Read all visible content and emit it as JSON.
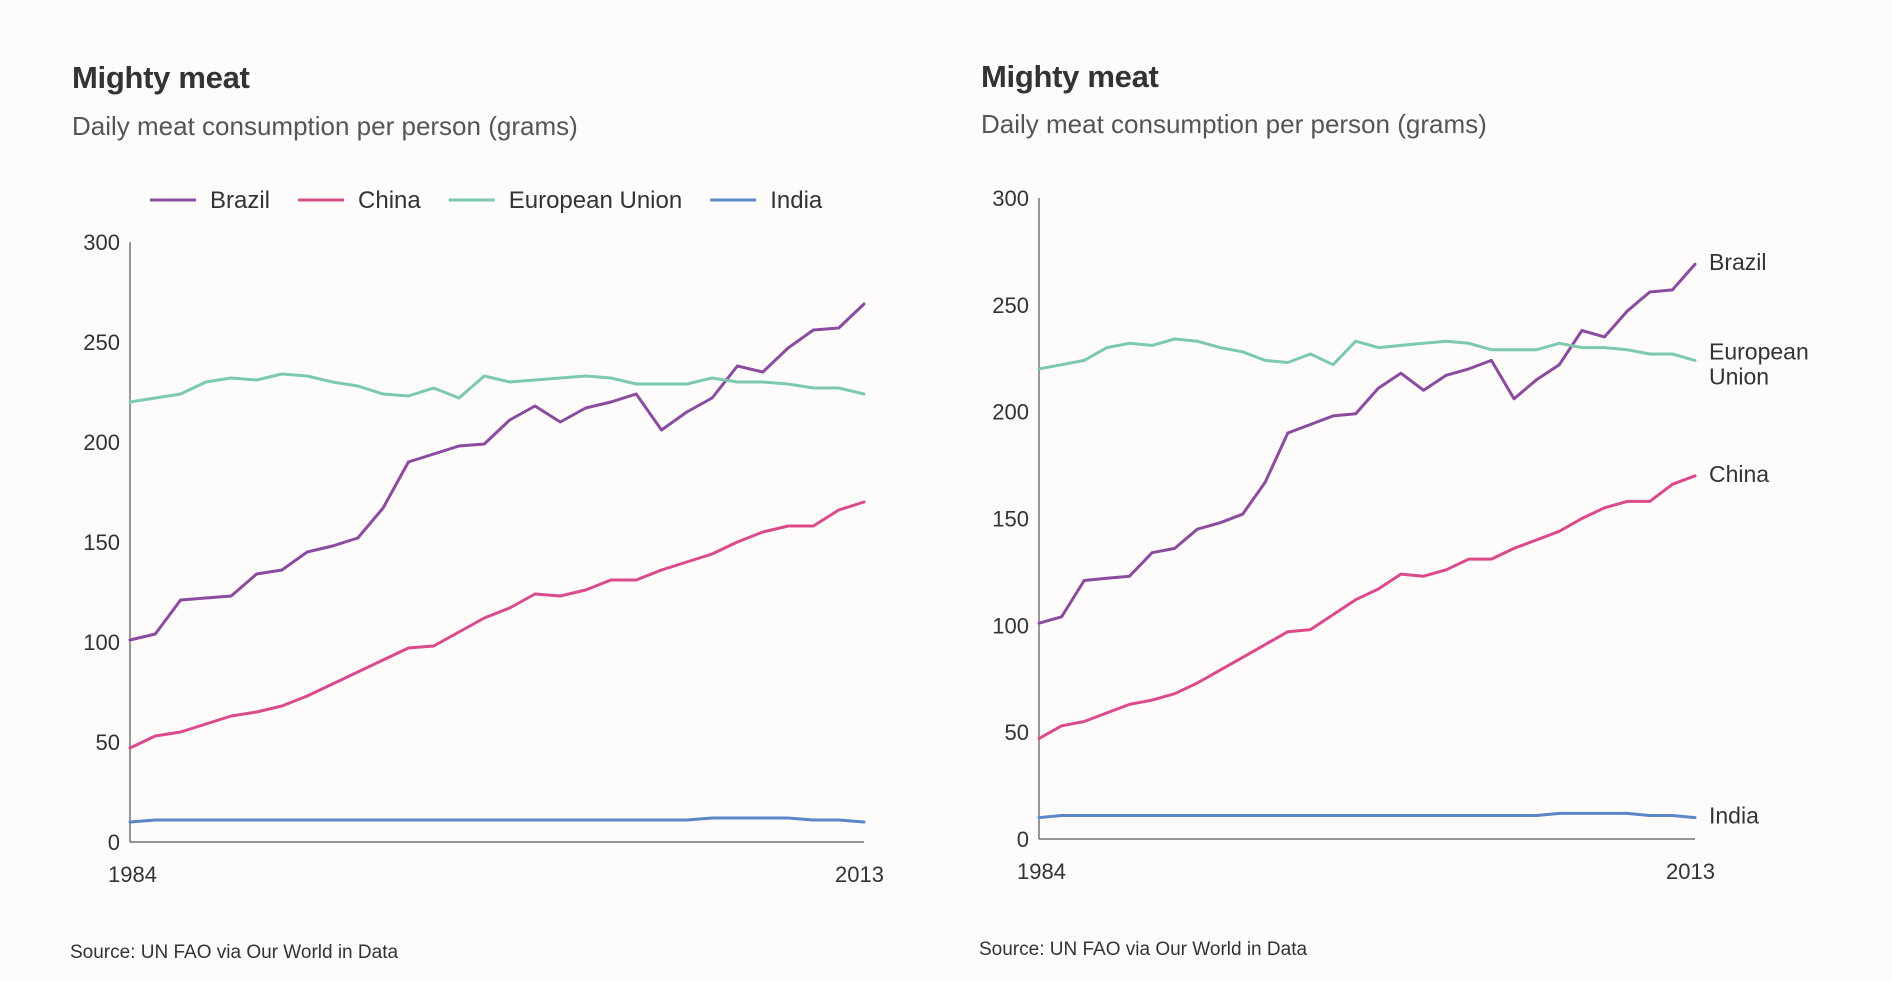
{
  "colors": {
    "Brazil": "#8b4b9e",
    "China": "#db4a8c",
    "European Union": "#7cc9b0",
    "India": "#5b87c9",
    "axis": "#555555"
  },
  "left": {
    "title": "Mighty meat",
    "subtitle": "Daily meat consumption per person (grams)",
    "source": "Source: UN FAO via Our World in Data",
    "legend": [
      "Brazil",
      "China",
      "European Union",
      "India"
    ]
  },
  "right": {
    "title": "Mighty meat",
    "subtitle": "Daily meat consumption per person (grams)",
    "source": "Source: UN FAO via Our World in Data",
    "end_labels": [
      {
        "name": "Brazil",
        "lines": [
          "Brazil"
        ]
      },
      {
        "name": "European Union",
        "lines": [
          "European",
          "Union"
        ]
      },
      {
        "name": "China",
        "lines": [
          "China"
        ]
      },
      {
        "name": "India",
        "lines": [
          "India"
        ]
      }
    ]
  },
  "chart_data": [
    {
      "type": "line",
      "title": "Mighty meat",
      "subtitle": "Daily meat consumption per person (grams)",
      "xlabel": "",
      "ylabel": "",
      "x": [
        1984,
        1985,
        1986,
        1987,
        1988,
        1989,
        1990,
        1991,
        1992,
        1993,
        1994,
        1995,
        1996,
        1997,
        1998,
        1999,
        2000,
        2001,
        2002,
        2003,
        2004,
        2005,
        2006,
        2007,
        2008,
        2009,
        2010,
        2011,
        2012,
        2013
      ],
      "x_tick_labels": [
        "1984",
        "2013"
      ],
      "ylim": [
        0,
        300
      ],
      "y_ticks": [
        0,
        50,
        100,
        150,
        200,
        250,
        300
      ],
      "legend_position": "top",
      "series": [
        {
          "name": "Brazil",
          "values": [
            101,
            104,
            121,
            122,
            123,
            134,
            136,
            145,
            148,
            152,
            167,
            190,
            194,
            198,
            199,
            211,
            218,
            210,
            217,
            220,
            224,
            206,
            215,
            222,
            238,
            235,
            247,
            256,
            257,
            269
          ]
        },
        {
          "name": "China",
          "values": [
            47,
            53,
            55,
            59,
            63,
            65,
            68,
            73,
            79,
            85,
            91,
            97,
            98,
            105,
            112,
            117,
            124,
            123,
            126,
            131,
            131,
            136,
            140,
            144,
            150,
            155,
            158,
            158,
            166,
            170
          ]
        },
        {
          "name": "European Union",
          "values": [
            220,
            222,
            224,
            230,
            232,
            231,
            234,
            233,
            230,
            228,
            224,
            223,
            227,
            222,
            233,
            230,
            231,
            232,
            233,
            232,
            229,
            229,
            229,
            232,
            230,
            230,
            229,
            227,
            227,
            224
          ]
        },
        {
          "name": "India",
          "values": [
            10,
            11,
            11,
            11,
            11,
            11,
            11,
            11,
            11,
            11,
            11,
            11,
            11,
            11,
            11,
            11,
            11,
            11,
            11,
            11,
            11,
            11,
            11,
            12,
            12,
            12,
            12,
            11,
            11,
            10
          ]
        }
      ]
    },
    {
      "type": "line",
      "title": "Mighty meat",
      "subtitle": "Daily meat consumption per person (grams)",
      "xlabel": "",
      "ylabel": "",
      "x": [
        1984,
        1985,
        1986,
        1987,
        1988,
        1989,
        1990,
        1991,
        1992,
        1993,
        1994,
        1995,
        1996,
        1997,
        1998,
        1999,
        2000,
        2001,
        2002,
        2003,
        2004,
        2005,
        2006,
        2007,
        2008,
        2009,
        2010,
        2011,
        2012,
        2013
      ],
      "x_tick_labels": [
        "1984",
        "2013"
      ],
      "ylim": [
        0,
        300
      ],
      "y_ticks": [
        0,
        50,
        100,
        150,
        200,
        250,
        300
      ],
      "legend_position": "line-end labels",
      "series": [
        {
          "name": "Brazil",
          "values": [
            101,
            104,
            121,
            122,
            123,
            134,
            136,
            145,
            148,
            152,
            167,
            190,
            194,
            198,
            199,
            211,
            218,
            210,
            217,
            220,
            224,
            206,
            215,
            222,
            238,
            235,
            247,
            256,
            257,
            269
          ]
        },
        {
          "name": "China",
          "values": [
            47,
            53,
            55,
            59,
            63,
            65,
            68,
            73,
            79,
            85,
            91,
            97,
            98,
            105,
            112,
            117,
            124,
            123,
            126,
            131,
            131,
            136,
            140,
            144,
            150,
            155,
            158,
            158,
            166,
            170
          ]
        },
        {
          "name": "European Union",
          "values": [
            220,
            222,
            224,
            230,
            232,
            231,
            234,
            233,
            230,
            228,
            224,
            223,
            227,
            222,
            233,
            230,
            231,
            232,
            233,
            232,
            229,
            229,
            229,
            232,
            230,
            230,
            229,
            227,
            227,
            224
          ]
        },
        {
          "name": "India",
          "values": [
            10,
            11,
            11,
            11,
            11,
            11,
            11,
            11,
            11,
            11,
            11,
            11,
            11,
            11,
            11,
            11,
            11,
            11,
            11,
            11,
            11,
            11,
            11,
            12,
            12,
            12,
            12,
            11,
            11,
            10
          ]
        }
      ]
    }
  ]
}
